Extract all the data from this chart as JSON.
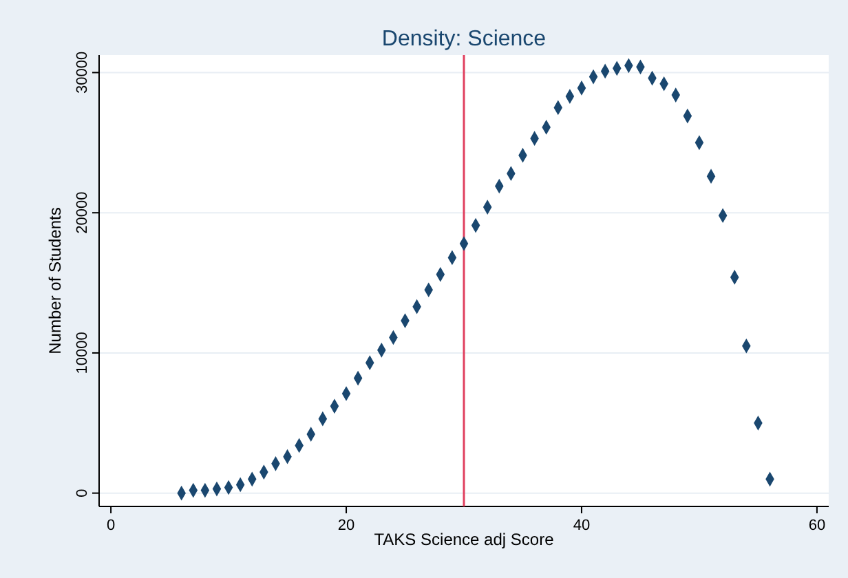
{
  "chart_data": {
    "type": "scatter",
    "title": "Density: Science",
    "xlabel": "TAKS Science adj Score",
    "ylabel": "Number of Students",
    "x": [
      6,
      7,
      8,
      9,
      10,
      11,
      12,
      13,
      14,
      15,
      16,
      17,
      18,
      19,
      20,
      21,
      22,
      23,
      24,
      25,
      26,
      27,
      28,
      29,
      30,
      31,
      32,
      33,
      34,
      35,
      36,
      37,
      38,
      39,
      40,
      41,
      42,
      43,
      44,
      45,
      46,
      47,
      48,
      49,
      50,
      51,
      52,
      53,
      54,
      55,
      56
    ],
    "series": [
      {
        "color": "#1a476f",
        "values": [
          0,
          200,
          200,
          300,
          400,
          600,
          1000,
          1500,
          2100,
          2600,
          3400,
          4200,
          5300,
          6200,
          7100,
          8200,
          9300,
          10200,
          11100,
          12300,
          13300,
          14500,
          15600,
          16800,
          17800,
          19100,
          20400,
          21900,
          22800,
          24100,
          25300,
          26100,
          27500,
          28300,
          28900,
          29700,
          30100,
          30300,
          30500,
          30400,
          29600,
          29200,
          28400,
          26900,
          25000,
          22600,
          19800,
          15400,
          10500,
          5000,
          1000
        ]
      }
    ],
    "xlim": [
      -1,
      61
    ],
    "ylim": [
      -950,
      31250
    ],
    "xticks": [
      0,
      20,
      40,
      60
    ],
    "yticks": [
      0,
      10000,
      20000,
      30000
    ],
    "grid": "y",
    "marker": "diamond",
    "ref_lines": [
      {
        "axis": "x",
        "value": 30,
        "color": "#e0405f"
      }
    ]
  }
}
